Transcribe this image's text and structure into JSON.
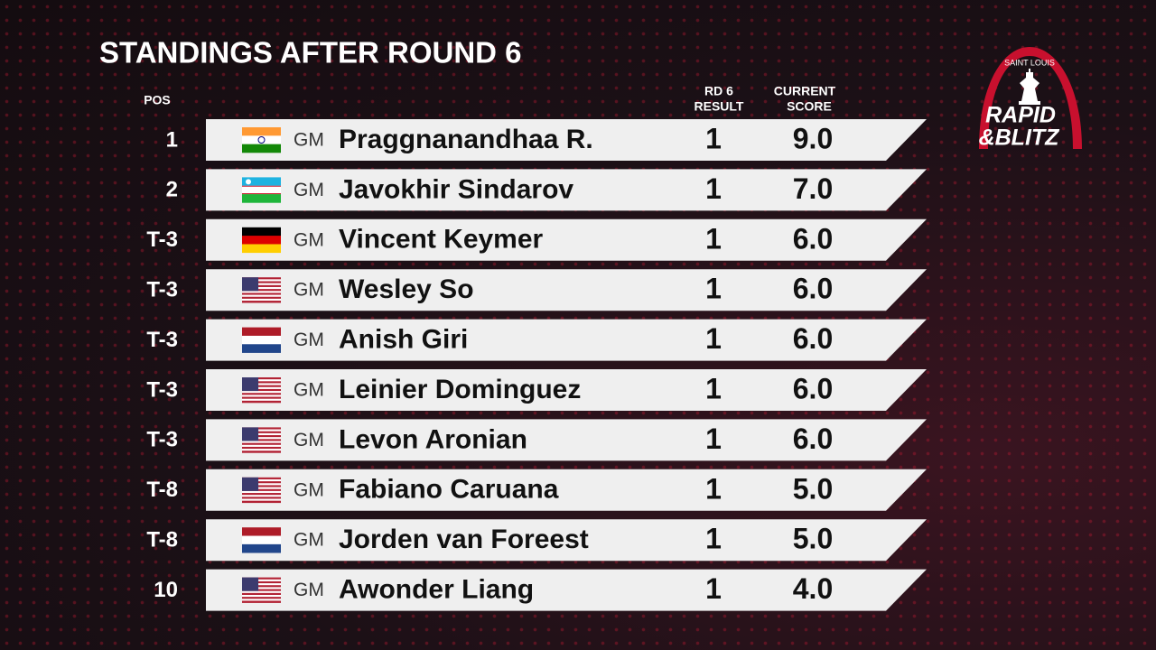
{
  "header": {
    "title": "STANDINGS AFTER ROUND 6"
  },
  "columns": {
    "pos": "POS",
    "result": [
      "RD 6",
      "RESULT"
    ],
    "score": [
      "CURRENT",
      "SCORE"
    ]
  },
  "logo": {
    "top": "SAINT LOUIS",
    "line1": "RAPID",
    "line2": "&BLITZ"
  },
  "rows": [
    {
      "pos": "1",
      "title": "GM",
      "name": "Praggnanandhaa R.",
      "result": "1",
      "score": "9.0"
    },
    {
      "pos": "2",
      "title": "GM",
      "name": "Javokhir Sindarov",
      "result": "1",
      "score": "7.0"
    },
    {
      "pos": "T-3",
      "title": "GM",
      "name": "Vincent Keymer",
      "result": "1",
      "score": "6.0"
    },
    {
      "pos": "T-3",
      "title": "GM",
      "name": "Wesley So",
      "result": "1",
      "score": "6.0"
    },
    {
      "pos": "T-3",
      "title": "GM",
      "name": "Anish Giri",
      "result": "1",
      "score": "6.0"
    },
    {
      "pos": "T-3",
      "title": "GM",
      "name": "Leinier Dominguez",
      "result": "1",
      "score": "6.0"
    },
    {
      "pos": "T-3",
      "title": "GM",
      "name": "Levon Aronian",
      "result": "1",
      "score": "6.0"
    },
    {
      "pos": "T-8",
      "title": "GM",
      "name": "Fabiano Caruana",
      "result": "1",
      "score": "5.0"
    },
    {
      "pos": "T-8",
      "title": "GM",
      "name": "Jorden van Foreest",
      "result": "1",
      "score": "5.0"
    },
    {
      "pos": "10",
      "title": "GM",
      "name": "Awonder Liang",
      "result": "1",
      "score": "4.0"
    }
  ]
}
